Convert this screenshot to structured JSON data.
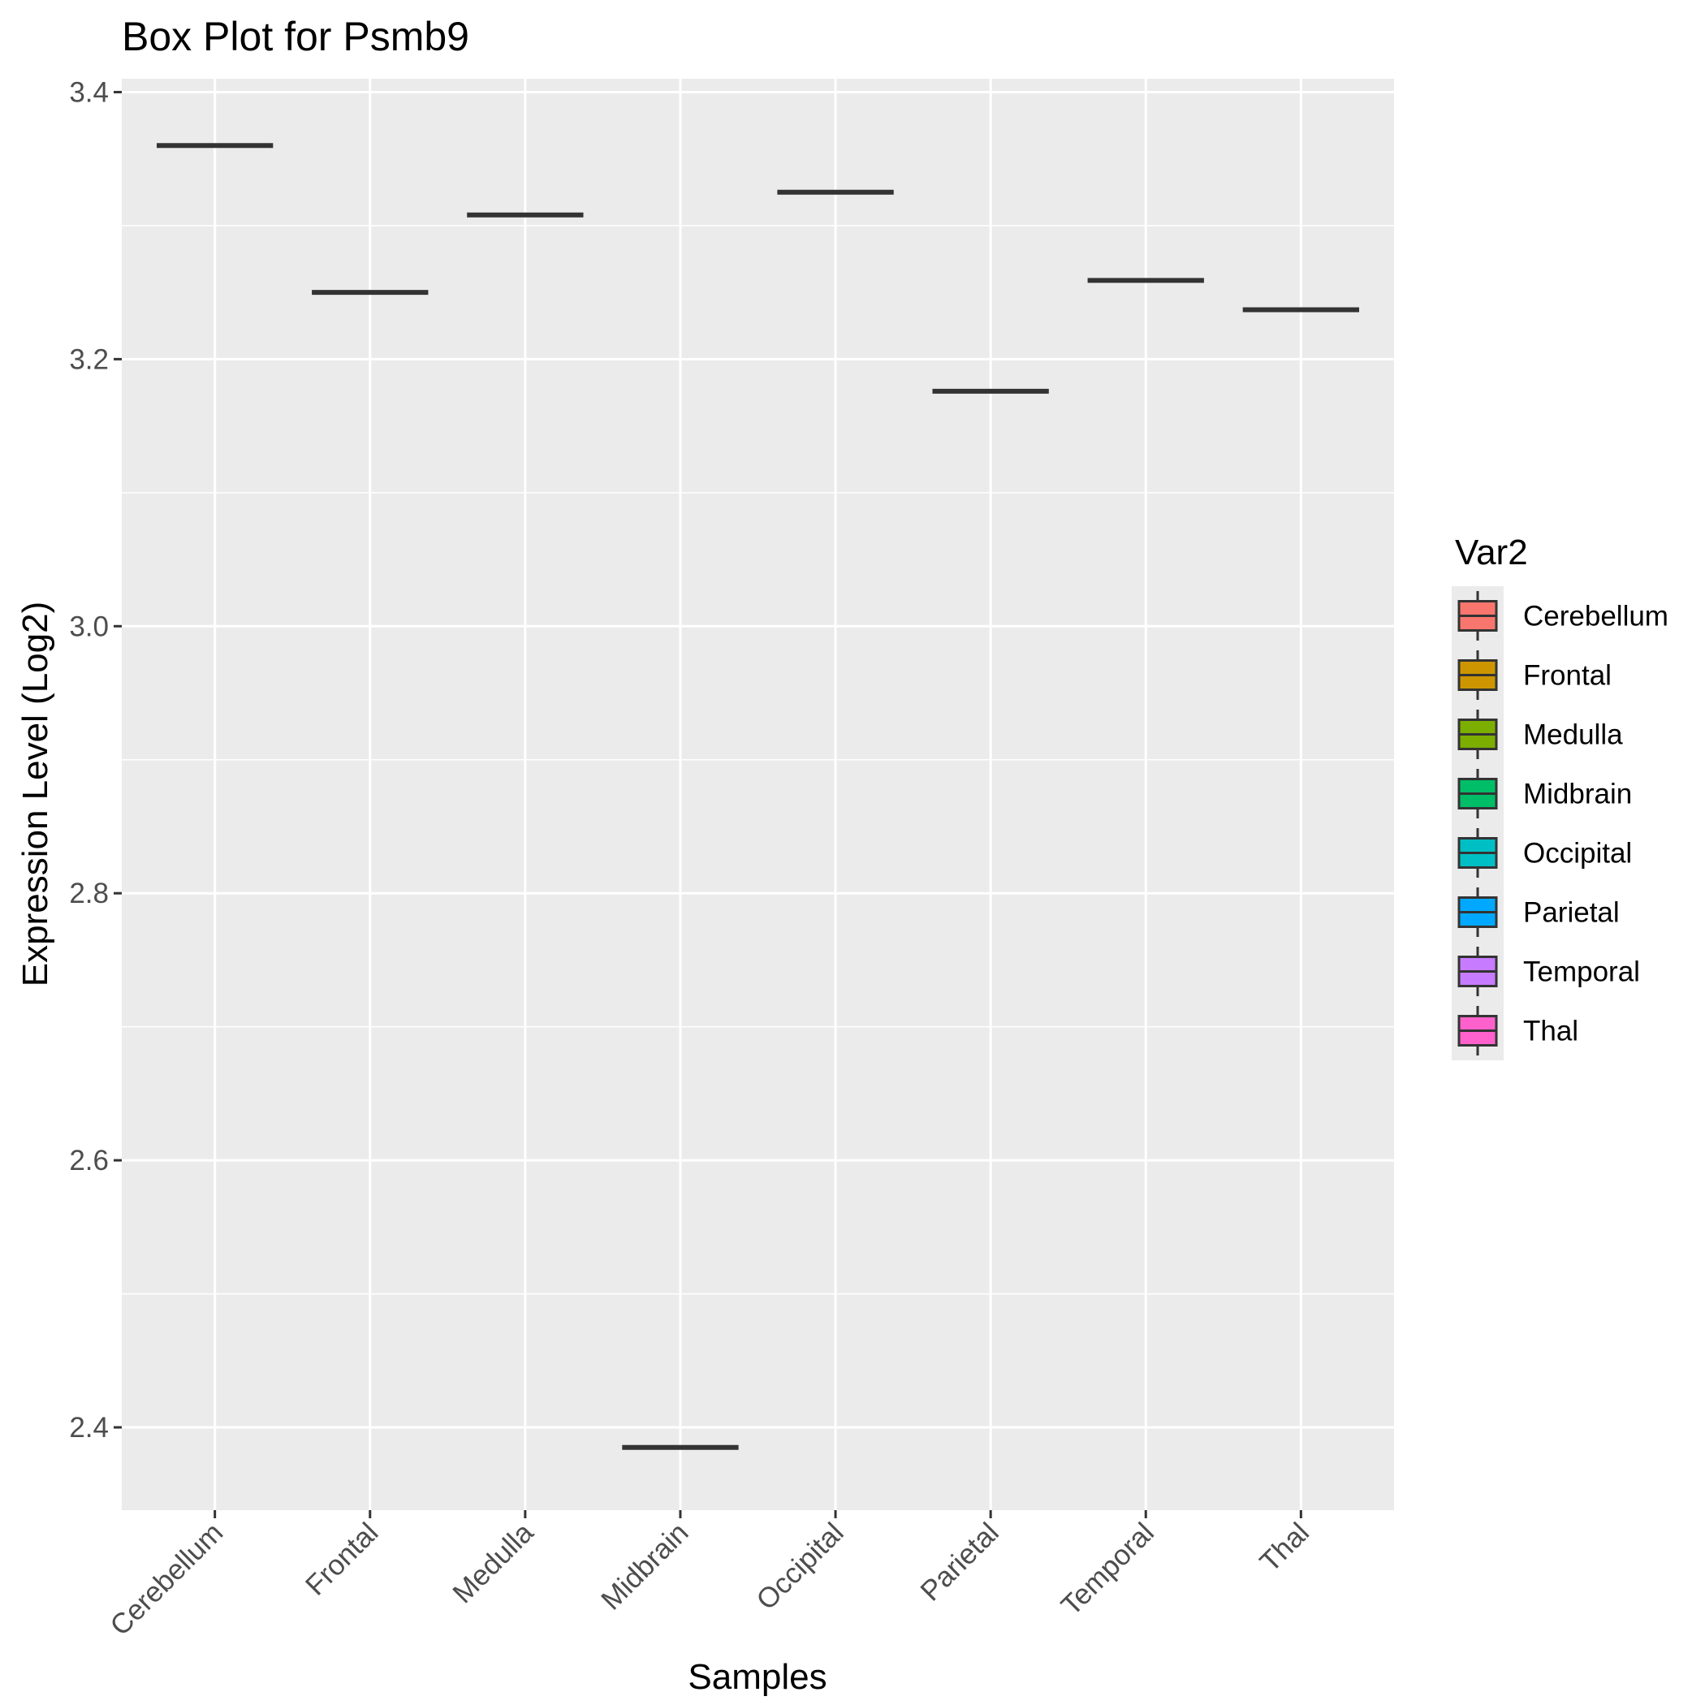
{
  "chart_data": {
    "type": "box",
    "title": "Box Plot for Psmb9",
    "xlabel": "Samples",
    "ylabel": "Expression Level (Log2)",
    "categories": [
      "Cerebellum",
      "Frontal",
      "Medulla",
      "Midbrain",
      "Occipital",
      "Parietal",
      "Temporal",
      "Thal"
    ],
    "values": [
      3.36,
      3.25,
      3.308,
      2.385,
      3.325,
      3.176,
      3.259,
      3.237
    ],
    "ylim": [
      2.338,
      3.41
    ],
    "yticks": [
      2.4,
      2.6,
      2.8,
      3.0,
      3.2,
      3.4
    ],
    "ytick_labels": [
      "2.4",
      "2.6",
      "2.8",
      "3.0",
      "3.2",
      "3.4"
    ],
    "grid": true,
    "legend": {
      "title": "Var2",
      "placement": "right",
      "entries": [
        "Cerebellum",
        "Frontal",
        "Medulla",
        "Midbrain",
        "Occipital",
        "Parietal",
        "Temporal",
        "Thal"
      ],
      "colors": [
        "#F8766D",
        "#CD9600",
        "#7CAE00",
        "#00BE67",
        "#00BFC4",
        "#00A9FF",
        "#C77CFF",
        "#FF61CC"
      ]
    },
    "panel_background": "#EBEBEB",
    "grid_color": "#FFFFFF",
    "median_color": "#333333"
  }
}
